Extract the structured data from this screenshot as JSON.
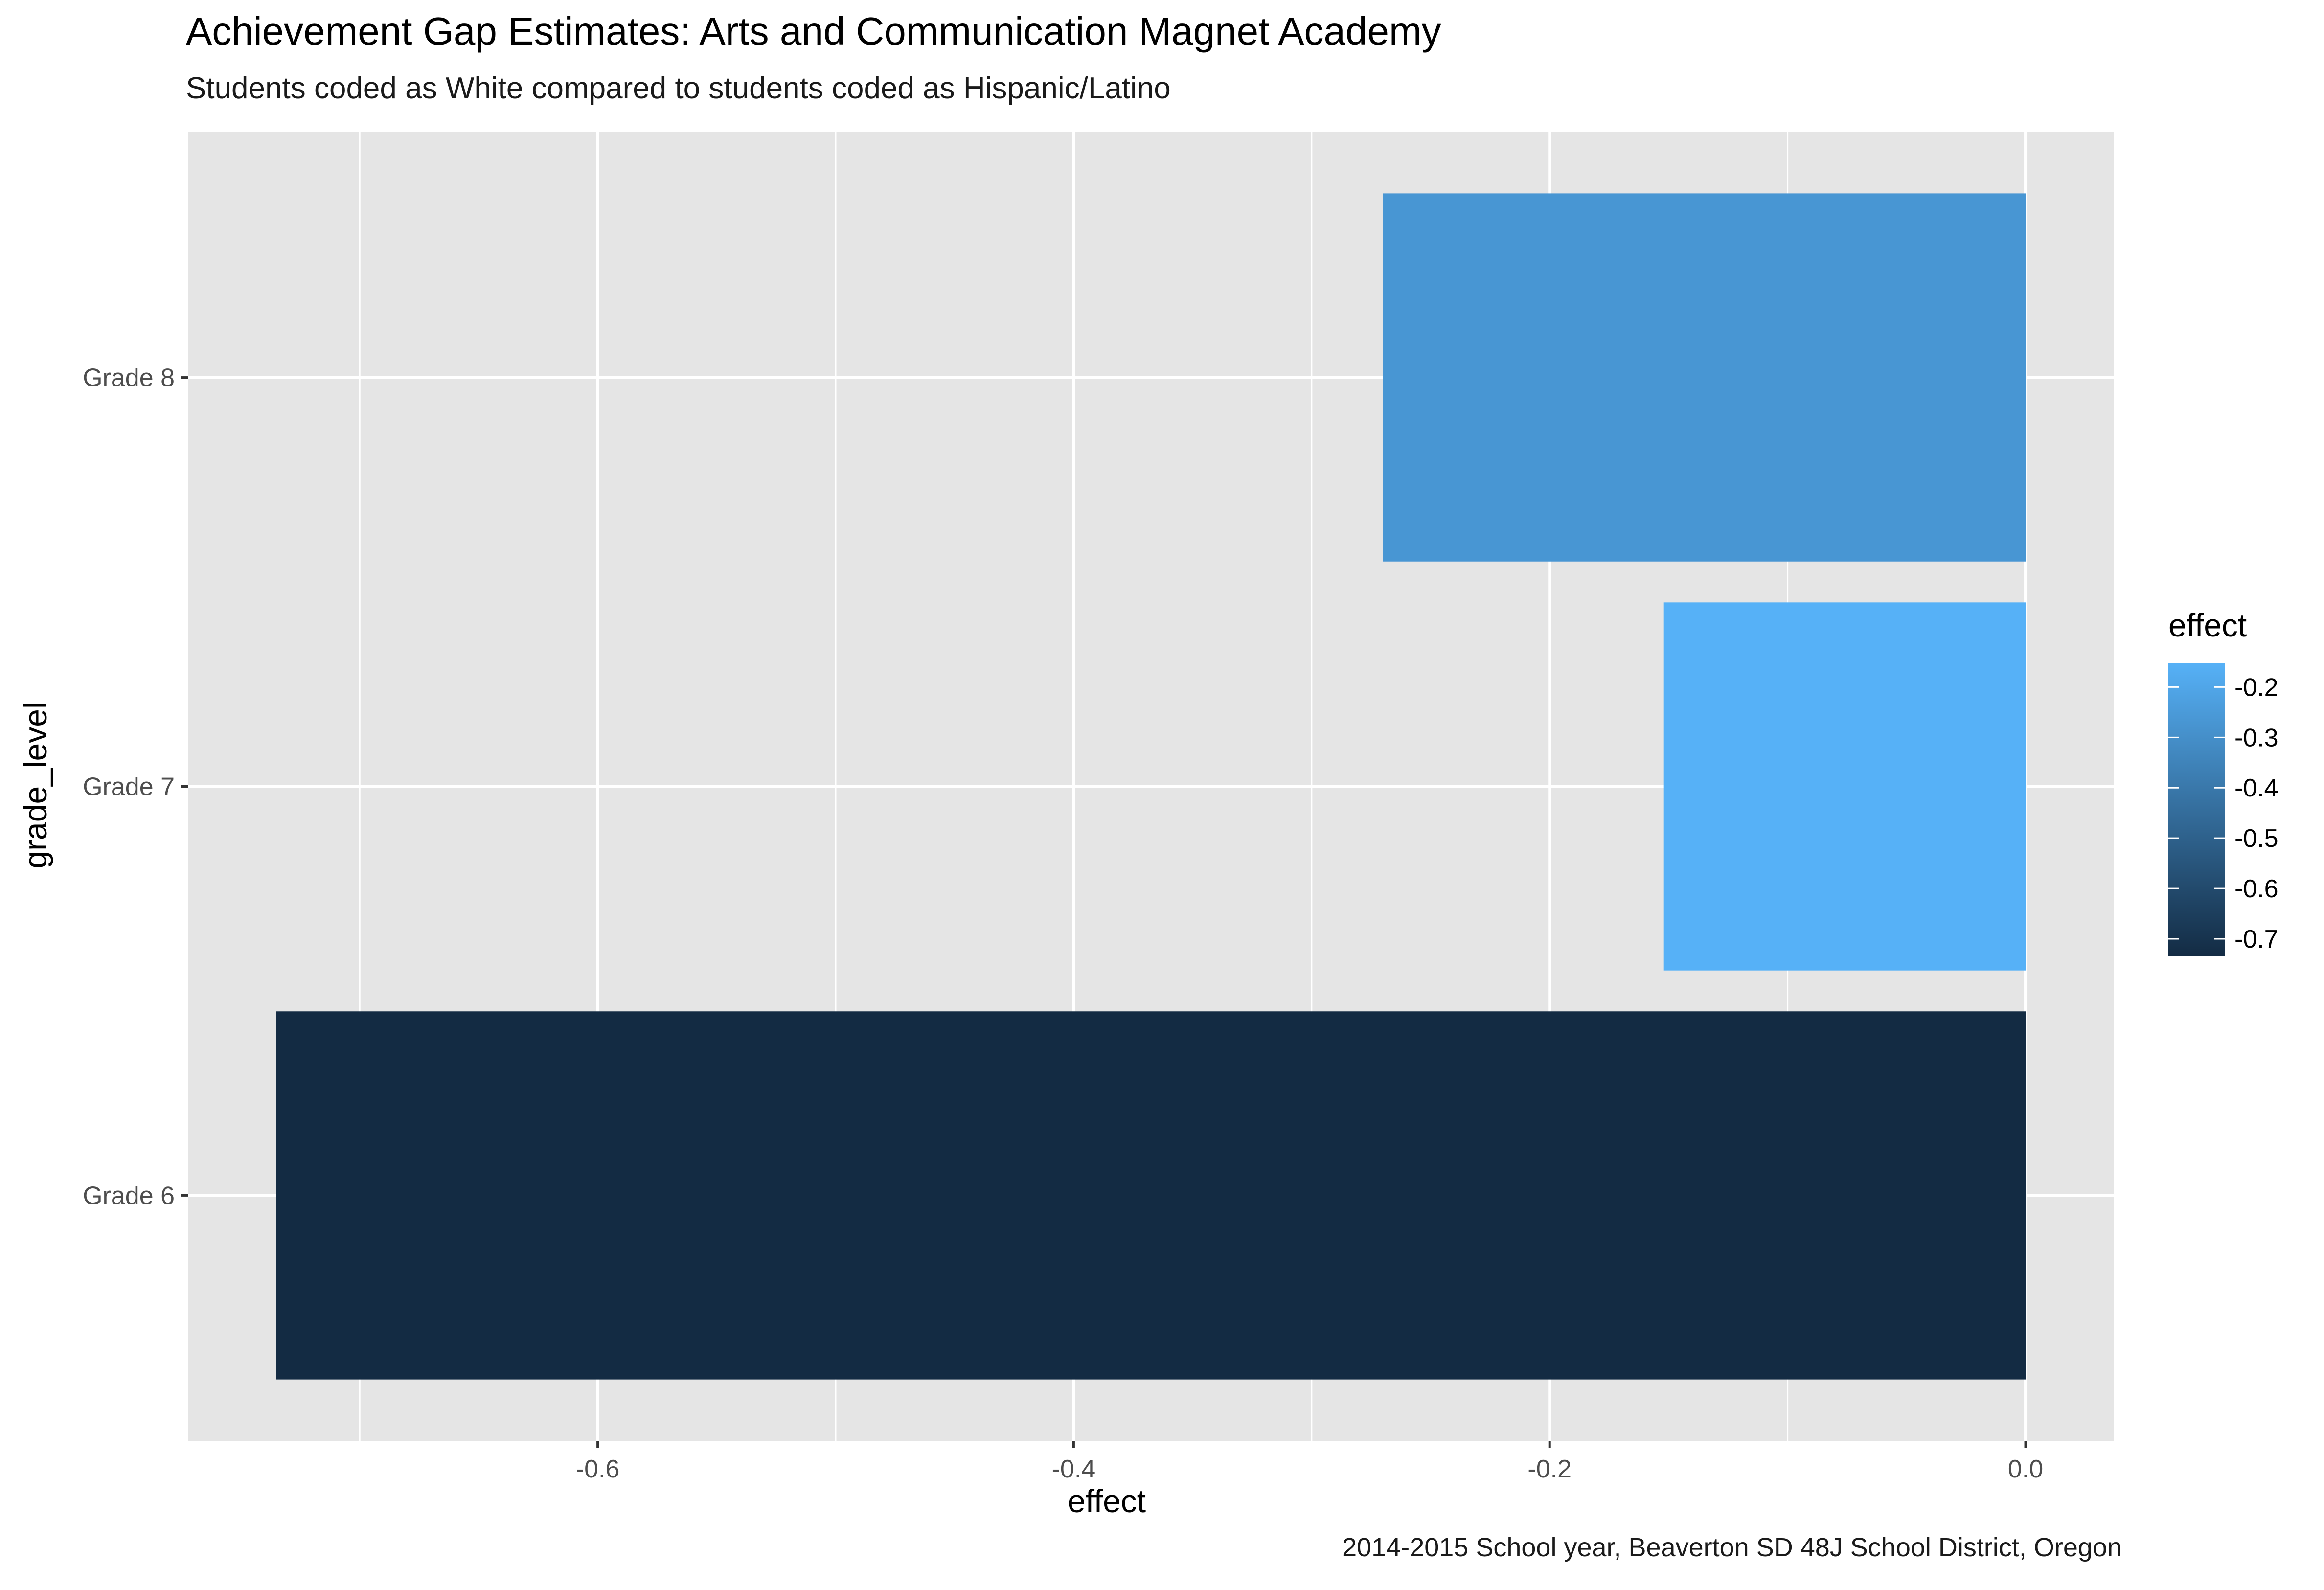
{
  "chart_data": {
    "type": "bar",
    "orientation": "horizontal",
    "title": "Achievement Gap Estimates: Arts and Communication Magnet Academy",
    "subtitle": "Students coded as White compared to students coded as Hispanic/Latino",
    "caption": "2014-2015 School year, Beaverton SD 48J School District, Oregon",
    "xlabel": "effect",
    "ylabel": "grade_level",
    "categories": [
      "Grade 6",
      "Grade 7",
      "Grade 8"
    ],
    "values": [
      -0.735,
      -0.152,
      -0.27
    ],
    "xlim": [
      -0.772,
      0.037
    ],
    "x_ticks": [
      -0.6,
      -0.4,
      -0.2,
      0.0
    ],
    "x_tick_labels": [
      "-0.6",
      "-0.4",
      "-0.2",
      "0.0"
    ],
    "grid": true,
    "legend": {
      "title": "effect",
      "position": "right",
      "type": "colorbar",
      "range": [
        -0.735,
        -0.152
      ],
      "ticks": [
        -0.2,
        -0.3,
        -0.4,
        -0.5,
        -0.6,
        -0.7
      ],
      "tick_labels": [
        "-0.2",
        "-0.3",
        "-0.4",
        "-0.5",
        "-0.6",
        "-0.7"
      ],
      "color_low": "#132b43",
      "color_high": "#56b1f7"
    },
    "colors": {
      "panel_background": "#e5e5e5",
      "grid_line": "#ffffff"
    }
  }
}
